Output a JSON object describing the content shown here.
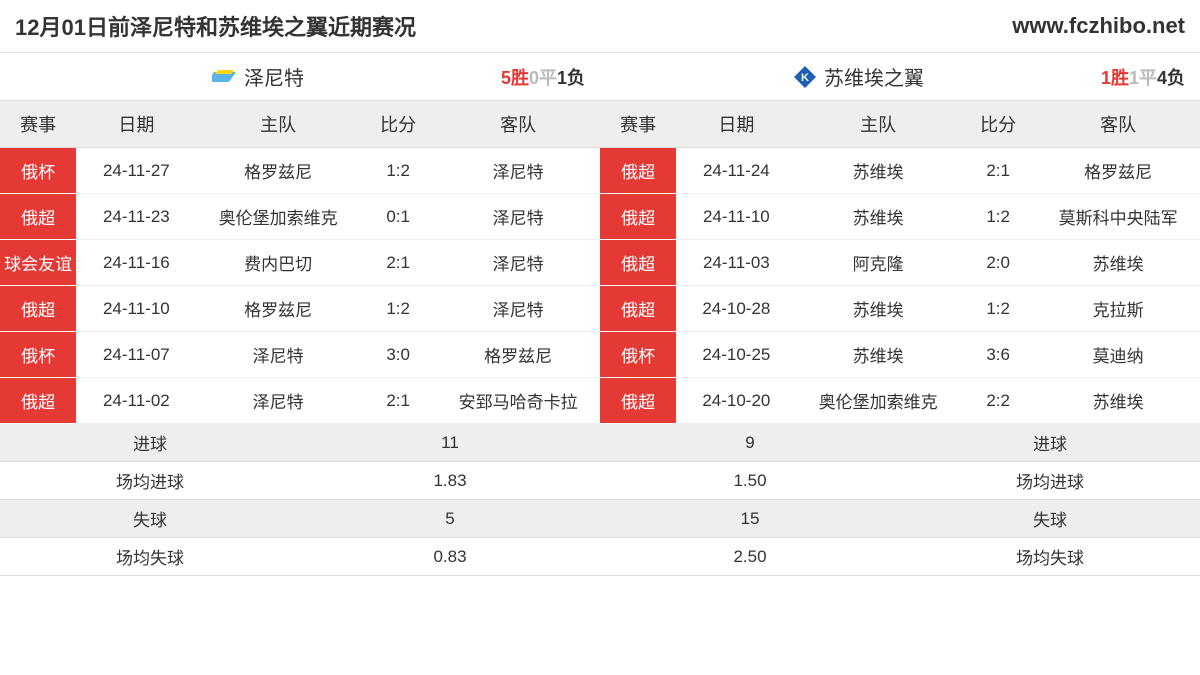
{
  "header": {
    "title": "12月01日前泽尼特和苏维埃之翼近期赛况",
    "website": "www.fczhibo.net"
  },
  "colors": {
    "red": "#e53935",
    "gray": "#bbbbbb",
    "header_bg": "#eeeeee"
  },
  "columns": {
    "competition": "赛事",
    "date": "日期",
    "home": "主队",
    "score": "比分",
    "away": "客队"
  },
  "left": {
    "team_name": "泽尼特",
    "icon_color": "#5bb5e8",
    "record": {
      "win": "5胜",
      "draw": "0平",
      "loss": "1负"
    },
    "matches": [
      {
        "comp": "俄杯",
        "date": "24-11-27",
        "home": "格罗兹尼",
        "score": "1:2",
        "away": "泽尼特"
      },
      {
        "comp": "俄超",
        "date": "24-11-23",
        "home": "奥伦堡加索维克",
        "score": "0:1",
        "away": "泽尼特"
      },
      {
        "comp": "球会友谊",
        "date": "24-11-16",
        "home": "费内巴切",
        "score": "2:1",
        "away": "泽尼特"
      },
      {
        "comp": "俄超",
        "date": "24-11-10",
        "home": "格罗兹尼",
        "score": "1:2",
        "away": "泽尼特"
      },
      {
        "comp": "俄杯",
        "date": "24-11-07",
        "home": "泽尼特",
        "score": "3:0",
        "away": "格罗兹尼"
      },
      {
        "comp": "俄超",
        "date": "24-11-02",
        "home": "泽尼特",
        "score": "2:1",
        "away": "安郅马哈奇卡拉"
      }
    ],
    "summary": [
      {
        "label": "进球",
        "value": "11"
      },
      {
        "label": "场均进球",
        "value": "1.83"
      },
      {
        "label": "失球",
        "value": "5"
      },
      {
        "label": "场均失球",
        "value": "0.83"
      }
    ]
  },
  "right": {
    "team_name": "苏维埃之翼",
    "icon_color": "#1e5fb3",
    "record": {
      "win": "1胜",
      "draw": "1平",
      "loss": "4负"
    },
    "matches": [
      {
        "comp": "俄超",
        "date": "24-11-24",
        "home": "苏维埃",
        "score": "2:1",
        "away": "格罗兹尼"
      },
      {
        "comp": "俄超",
        "date": "24-11-10",
        "home": "苏维埃",
        "score": "1:2",
        "away": "莫斯科中央陆军"
      },
      {
        "comp": "俄超",
        "date": "24-11-03",
        "home": "阿克隆",
        "score": "2:0",
        "away": "苏维埃"
      },
      {
        "comp": "俄超",
        "date": "24-10-28",
        "home": "苏维埃",
        "score": "1:2",
        "away": "克拉斯"
      },
      {
        "comp": "俄杯",
        "date": "24-10-25",
        "home": "苏维埃",
        "score": "3:6",
        "away": "莫迪纳"
      },
      {
        "comp": "俄超",
        "date": "24-10-20",
        "home": "奥伦堡加索维克",
        "score": "2:2",
        "away": "苏维埃"
      }
    ],
    "summary": [
      {
        "label": "进球",
        "value": "9"
      },
      {
        "label": "场均进球",
        "value": "1.50"
      },
      {
        "label": "失球",
        "value": "15"
      },
      {
        "label": "场均失球",
        "value": "2.50"
      }
    ]
  }
}
